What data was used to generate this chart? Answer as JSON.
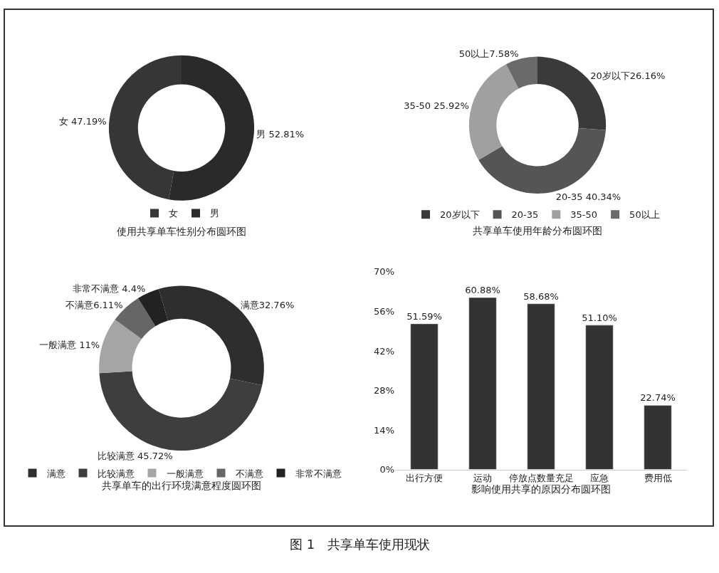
{
  "chart_data": [
    {
      "type": "donut",
      "title": "使用共享单车性别分布圆环图",
      "categories": [
        "女",
        "男"
      ],
      "values": [
        47.19,
        52.81
      ],
      "colors": [
        "#363636",
        "#2a2a2a"
      ],
      "value_labels": [
        "女 47.19%",
        "男 52.81%"
      ],
      "legend": "bottom"
    },
    {
      "type": "donut",
      "title": "共享单车使用年龄分布圆环图",
      "categories": [
        "20岁以下",
        "20-35",
        "35-50",
        "50以上"
      ],
      "values": [
        26.16,
        40.34,
        25.92,
        7.58
      ],
      "colors": [
        "#3a3a3a",
        "#555555",
        "#a0a0a0",
        "#6a6a6a"
      ],
      "value_labels": [
        "20岁以下26.16%",
        "20-35 40.34%",
        "35-50 25.92%",
        "50以上7.58%"
      ],
      "legend": "bottom"
    },
    {
      "type": "donut",
      "title": "共享单车的出行环境满意程度圆环图",
      "categories": [
        "满意",
        "比较满意",
        "一般满意",
        "不满意",
        "非常不满意"
      ],
      "values": [
        32.76,
        45.72,
        11,
        6.11,
        4.4
      ],
      "colors": [
        "#2e2e2e",
        "#3e3e3e",
        "#a5a5a5",
        "#666666",
        "#222222"
      ],
      "value_labels": [
        "满意32.76%",
        "比较满意 45.72%",
        "一般满意 11%",
        "不满意6.11%",
        "非常不满意 4.4%"
      ],
      "legend": "bottom"
    },
    {
      "type": "bar",
      "title": "影响使用共享的原因分布圆环图",
      "categories": [
        "出行方便",
        "运动",
        "停放点数量充足",
        "应急",
        "费用低"
      ],
      "values": [
        51.59,
        60.88,
        58.68,
        51.1,
        22.74
      ],
      "color": "#333333",
      "value_labels": [
        "51.59%",
        "60.88%",
        "58.68%",
        "51.10%",
        "22.74%"
      ],
      "ylim": [
        0,
        70
      ],
      "yticks": [
        {
          "value": 0,
          "label": "0%"
        },
        {
          "value": 14,
          "label": "14%"
        },
        {
          "value": 28,
          "label": "28%"
        },
        {
          "value": 42,
          "label": "42%"
        },
        {
          "value": 56,
          "label": "56%"
        },
        {
          "value": 70,
          "label": "70%"
        }
      ],
      "annotations": [
        "图 1　共享单车使用现状"
      ]
    }
  ]
}
